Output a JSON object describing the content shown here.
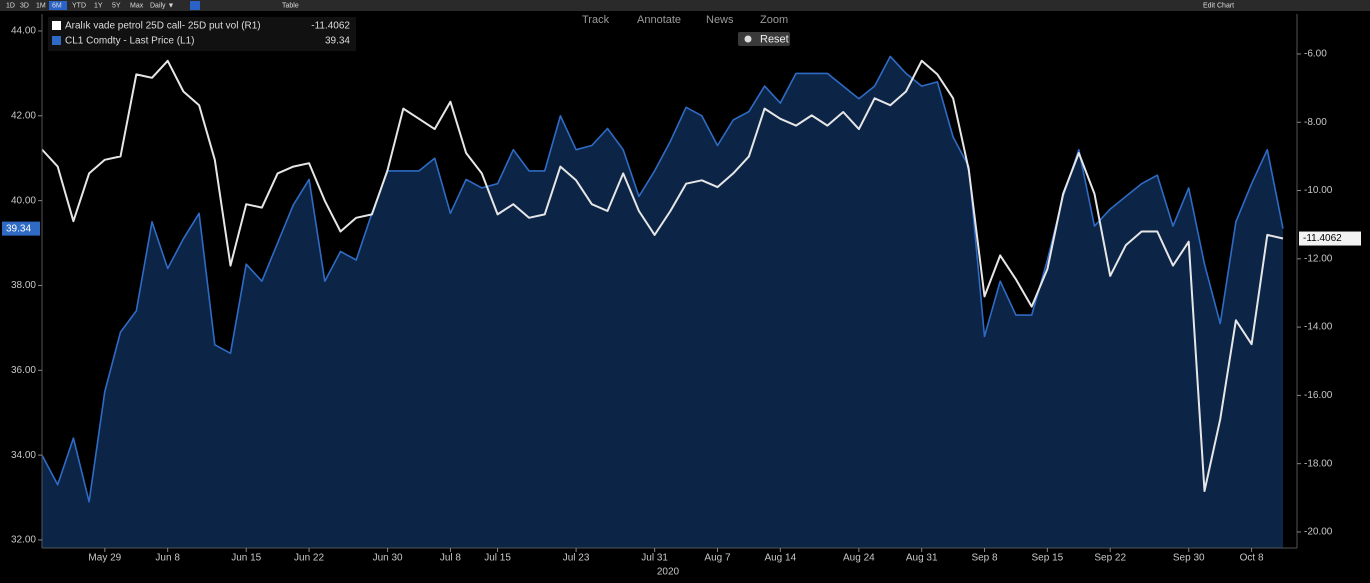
{
  "toolbar": {
    "buttons": [
      "1D",
      "3D",
      "1M",
      "6M",
      "YTD",
      "1Y",
      "5Y",
      "Max",
      "Daily ▼",
      "Table"
    ],
    "edit": "Edit Chart",
    "tools": [
      "Track",
      "Annotate",
      "News",
      "Zoom"
    ],
    "reset": "Reset"
  },
  "chart_data": {
    "type": "line",
    "categories": [
      null,
      null,
      null,
      null,
      "May 29",
      null,
      null,
      null,
      "Jun 8",
      null,
      null,
      null,
      null,
      "Jun 15",
      null,
      null,
      null,
      "Jun 22",
      null,
      null,
      null,
      null,
      "Jun 30",
      null,
      null,
      null,
      "Jul 8",
      null,
      null,
      "Jul 15",
      null,
      null,
      null,
      null,
      "Jul 23",
      null,
      null,
      null,
      null,
      "Jul 31",
      null,
      null,
      null,
      "Aug 7",
      null,
      null,
      null,
      "Aug 14",
      null,
      null,
      null,
      null,
      "Aug 24",
      null,
      null,
      null,
      "Aug 31",
      null,
      null,
      null,
      "Sep 8",
      null,
      null,
      null,
      "Sep 15",
      null,
      null,
      null,
      "Sep 22",
      null,
      null,
      null,
      null,
      "Sep 30",
      null,
      null,
      null,
      "Oct 8",
      null,
      null
    ],
    "xlabel": "2020",
    "series": [
      {
        "name": "Aralık vade petrol 25D call- 25D put vol (R1)",
        "color": "#e6e6e6",
        "axis": "y2",
        "values": [
          -8.8,
          -9.3,
          -10.9,
          -9.5,
          -9.1,
          -9.0,
          -6.6,
          -6.7,
          -6.2,
          -7.1,
          -7.5,
          -9.1,
          -12.2,
          -10.4,
          -10.5,
          -9.5,
          -9.3,
          -9.2,
          -10.3,
          -11.2,
          -10.8,
          -10.7,
          -9.4,
          -7.6,
          -7.9,
          -8.2,
          -7.4,
          -8.9,
          -9.5,
          -10.7,
          -10.4,
          -10.8,
          -10.7,
          -9.3,
          -9.7,
          -10.4,
          -10.6,
          -9.5,
          -10.6,
          -11.3,
          -10.6,
          -9.8,
          -9.7,
          -9.9,
          -9.5,
          -9.0,
          -7.6,
          -7.9,
          -8.1,
          -7.8,
          -8.1,
          -7.7,
          -8.2,
          -7.3,
          -7.5,
          -7.1,
          -6.2,
          -6.6,
          -7.3,
          -9.4,
          -13.1,
          -11.9,
          -12.6,
          -13.4,
          -12.3,
          -10.1,
          -8.9,
          -10.1,
          -12.5,
          -11.6,
          -11.2,
          -11.2,
          -12.2,
          -11.5,
          -18.8,
          -16.7,
          -13.8,
          -14.5,
          -11.3,
          -11.4062
        ]
      },
      {
        "name": "CL1 Comdty - Last Price (L1)",
        "color": "#2f6bc4",
        "fill": "#0c2547",
        "axis": "y",
        "values": [
          34.0,
          33.3,
          34.4,
          32.9,
          35.5,
          36.9,
          37.4,
          39.5,
          38.4,
          39.1,
          39.7,
          36.6,
          36.4,
          38.5,
          38.1,
          39.0,
          39.9,
          40.5,
          38.1,
          38.8,
          38.6,
          39.7,
          40.7,
          40.7,
          40.7,
          41.0,
          39.7,
          40.5,
          40.3,
          40.4,
          41.2,
          40.7,
          40.7,
          42.0,
          41.2,
          41.3,
          41.7,
          41.2,
          40.1,
          40.7,
          41.4,
          42.2,
          42.0,
          41.3,
          41.9,
          42.1,
          42.7,
          42.3,
          43.0,
          43.0,
          43.0,
          42.7,
          42.4,
          42.7,
          43.4,
          43.0,
          42.7,
          42.8,
          41.5,
          40.8,
          36.8,
          38.1,
          37.3,
          37.3,
          38.6,
          40.1,
          41.2,
          39.4,
          39.8,
          40.1,
          40.4,
          40.6,
          39.4,
          40.3,
          38.5,
          37.1,
          39.5,
          40.4,
          41.2,
          39.34
        ]
      }
    ],
    "ylim": [
      31.81,
      44.4
    ],
    "yticks": [
      {
        "value": 32,
        "label": "32.00"
      },
      {
        "value": 34,
        "label": "34.00"
      },
      {
        "value": 36,
        "label": "36.00"
      },
      {
        "value": 38,
        "label": "38.00"
      },
      {
        "value": 40,
        "label": "40.00"
      },
      {
        "value": 42,
        "label": "42.00"
      },
      {
        "value": 44,
        "label": "44.00"
      }
    ],
    "y2lim": [
      -20.47,
      -4.83
    ],
    "y2ticks": [
      {
        "value": -20,
        "label": "-20.00"
      },
      {
        "value": -18,
        "label": "-18.00"
      },
      {
        "value": -16,
        "label": "-16.00"
      },
      {
        "value": -14,
        "label": "-14.00"
      },
      {
        "value": -12,
        "label": "-12.00"
      },
      {
        "value": -10,
        "label": "-10.00"
      },
      {
        "value": -8,
        "label": "-8.00"
      },
      {
        "value": -6,
        "label": "-6.00"
      }
    ]
  }
}
